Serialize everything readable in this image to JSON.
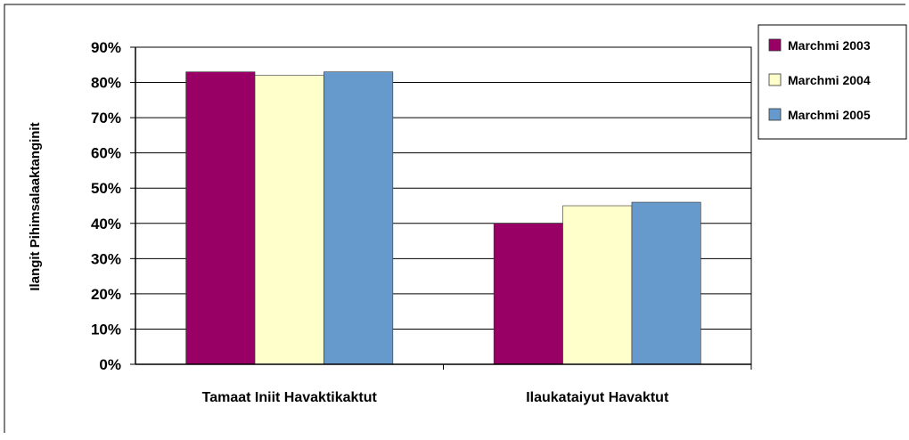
{
  "chart_data": {
    "type": "bar",
    "title": "",
    "xlabel": "",
    "ylabel": "Ilangit Pihimsalaaktanginit",
    "categories": [
      "Tamaat Iniit Havaktikaktut",
      "Ilaukataiyut Havaktut"
    ],
    "series": [
      {
        "name": "Marchmi 2003",
        "color": "#990066",
        "values": [
          83,
          40
        ]
      },
      {
        "name": "Marchmi 2004",
        "color": "#ffffcc",
        "values": [
          82,
          45
        ]
      },
      {
        "name": "Marchmi 2005",
        "color": "#6699cc",
        "values": [
          83,
          46
        ]
      }
    ],
    "yticks": [
      "0%",
      "10%",
      "20%",
      "30%",
      "40%",
      "50%",
      "60%",
      "70%",
      "80%",
      "90%"
    ],
    "ylim": [
      0,
      90
    ],
    "grid": true,
    "legend": "right"
  }
}
